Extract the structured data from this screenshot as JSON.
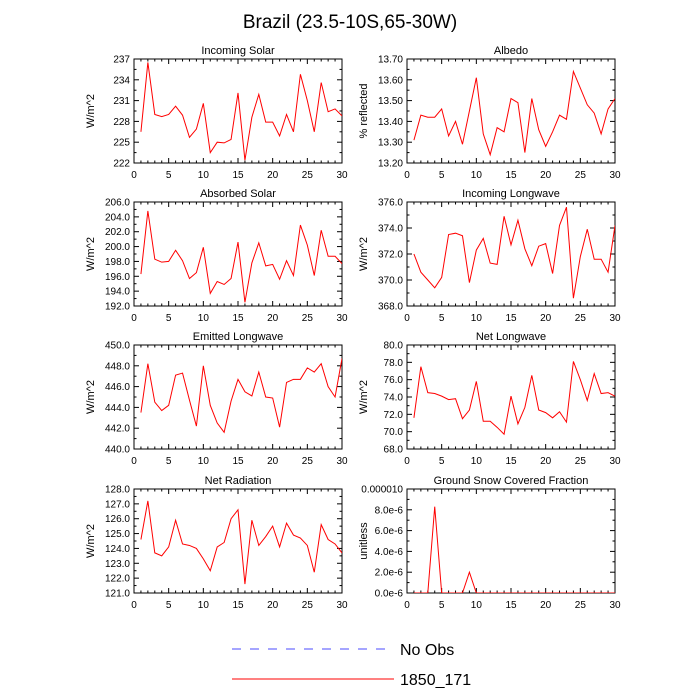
{
  "title": "Brazil (23.5-10S,65-30W)",
  "legend": [
    {
      "label": "No Obs",
      "color": "#4b4bff",
      "style": "dashed"
    },
    {
      "label": "1850_171",
      "color": "#ff0000",
      "style": "solid"
    }
  ],
  "chart_data": [
    {
      "type": "line",
      "title": "Incoming Solar",
      "ylabel": "W/m^2",
      "xlim": [
        0,
        30
      ],
      "ylim": [
        222,
        237
      ],
      "xticks": [
        "0",
        "5",
        "10",
        "15",
        "20",
        "25",
        "30"
      ],
      "yticks": [
        "222",
        "225",
        "228",
        "231",
        "234",
        "237"
      ],
      "series": [
        {
          "name": "1850_171",
          "color": "#ff0000",
          "x": [
            1,
            2,
            3,
            4,
            5,
            6,
            7,
            8,
            9,
            10,
            11,
            12,
            13,
            14,
            15,
            16,
            17,
            18,
            19,
            20,
            21,
            22,
            23,
            24,
            25,
            26,
            27,
            28,
            29,
            30
          ],
          "y": [
            226.5,
            236.5,
            229.0,
            228.7,
            229.0,
            230.2,
            228.9,
            225.7,
            226.9,
            230.6,
            223.5,
            225.0,
            224.9,
            225.4,
            232.1,
            222.4,
            228.6,
            231.9,
            227.9,
            227.9,
            225.9,
            229.0,
            226.5,
            234.8,
            231.0,
            226.5,
            233.6,
            229.4,
            229.8,
            228.8
          ]
        }
      ]
    },
    {
      "type": "line",
      "title": "Albedo",
      "ylabel": "% reflected",
      "xlim": [
        0,
        30
      ],
      "ylim": [
        13.2,
        13.7
      ],
      "xticks": [
        "0",
        "5",
        "10",
        "15",
        "20",
        "25",
        "30"
      ],
      "yticks": [
        "13.20",
        "13.30",
        "13.40",
        "13.50",
        "13.60",
        "13.70"
      ],
      "series": [
        {
          "name": "1850_171",
          "color": "#ff0000",
          "x": [
            1,
            2,
            3,
            4,
            5,
            6,
            7,
            8,
            9,
            10,
            11,
            12,
            13,
            14,
            15,
            16,
            17,
            18,
            19,
            20,
            21,
            22,
            23,
            24,
            25,
            26,
            27,
            28,
            29,
            30
          ],
          "y": [
            13.31,
            13.43,
            13.42,
            13.42,
            13.46,
            13.33,
            13.4,
            13.29,
            13.45,
            13.61,
            13.34,
            13.24,
            13.37,
            13.35,
            13.51,
            13.49,
            13.25,
            13.51,
            13.36,
            13.28,
            13.35,
            13.43,
            13.41,
            13.64,
            13.56,
            13.48,
            13.44,
            13.34,
            13.46,
            13.51
          ]
        }
      ]
    },
    {
      "type": "line",
      "title": "Absorbed Solar",
      "ylabel": "W/m^2",
      "xlim": [
        0,
        30
      ],
      "ylim": [
        192,
        206
      ],
      "xticks": [
        "0",
        "5",
        "10",
        "15",
        "20",
        "25",
        "30"
      ],
      "yticks": [
        "192.0",
        "194.0",
        "196.0",
        "198.0",
        "200.0",
        "202.0",
        "204.0",
        "206.0"
      ],
      "series": [
        {
          "name": "1850_171",
          "color": "#ff0000",
          "x": [
            1,
            2,
            3,
            4,
            5,
            6,
            7,
            8,
            9,
            10,
            11,
            12,
            13,
            14,
            15,
            16,
            17,
            18,
            19,
            20,
            21,
            22,
            23,
            24,
            25,
            26,
            27,
            28,
            29,
            30
          ],
          "y": [
            196.3,
            204.8,
            198.3,
            197.9,
            198.0,
            199.5,
            198.1,
            195.7,
            196.5,
            199.9,
            193.7,
            195.3,
            194.9,
            195.7,
            200.6,
            192.5,
            197.8,
            200.5,
            197.4,
            197.6,
            195.6,
            198.1,
            196.1,
            202.9,
            200.2,
            196.1,
            202.2,
            198.7,
            198.7,
            197.7
          ]
        }
      ]
    },
    {
      "type": "line",
      "title": "Incoming Longwave",
      "ylabel": "W/m^2",
      "xlim": [
        0,
        30
      ],
      "ylim": [
        368,
        376
      ],
      "xticks": [
        "0",
        "5",
        "10",
        "15",
        "20",
        "25",
        "30"
      ],
      "yticks": [
        "368.0",
        "370.0",
        "372.0",
        "374.0",
        "376.0"
      ],
      "series": [
        {
          "name": "1850_171",
          "color": "#ff0000",
          "x": [
            1,
            2,
            3,
            4,
            5,
            6,
            7,
            8,
            9,
            10,
            11,
            12,
            13,
            14,
            15,
            16,
            17,
            18,
            19,
            20,
            21,
            22,
            23,
            24,
            25,
            26,
            27,
            28,
            29,
            30
          ],
          "y": [
            372.0,
            370.6,
            370.0,
            369.4,
            370.2,
            373.5,
            373.6,
            373.4,
            369.8,
            372.3,
            373.2,
            371.3,
            371.2,
            374.9,
            372.7,
            374.6,
            372.4,
            371.1,
            372.6,
            372.8,
            370.5,
            374.2,
            375.6,
            368.6,
            371.8,
            373.9,
            371.6,
            371.6,
            370.6,
            374.2
          ]
        }
      ]
    },
    {
      "type": "line",
      "title": "Emitted Longwave",
      "ylabel": "W/m^2",
      "xlim": [
        0,
        30
      ],
      "ylim": [
        440,
        450
      ],
      "xticks": [
        "0",
        "5",
        "10",
        "15",
        "20",
        "25",
        "30"
      ],
      "yticks": [
        "440.0",
        "442.0",
        "444.0",
        "446.0",
        "448.0",
        "450.0"
      ],
      "series": [
        {
          "name": "1850_171",
          "color": "#ff0000",
          "x": [
            1,
            2,
            3,
            4,
            5,
            6,
            7,
            8,
            9,
            10,
            11,
            12,
            13,
            14,
            15,
            16,
            17,
            18,
            19,
            20,
            21,
            22,
            23,
            24,
            25,
            26,
            27,
            28,
            29,
            30
          ],
          "y": [
            443.5,
            448.2,
            444.5,
            443.7,
            444.2,
            447.1,
            447.3,
            444.7,
            442.2,
            448.0,
            444.2,
            442.5,
            441.6,
            444.6,
            446.7,
            445.5,
            445.1,
            447.4,
            445.0,
            444.9,
            442.1,
            446.4,
            446.7,
            446.7,
            447.8,
            447.4,
            448.2,
            446.0,
            445.0,
            448.7
          ]
        }
      ]
    },
    {
      "type": "line",
      "title": "Net Longwave",
      "ylabel": "W/m^2",
      "xlim": [
        0,
        30
      ],
      "ylim": [
        68,
        80
      ],
      "xticks": [
        "0",
        "5",
        "10",
        "15",
        "20",
        "25",
        "30"
      ],
      "yticks": [
        "68.0",
        "70.0",
        "72.0",
        "74.0",
        "76.0",
        "78.0",
        "80.0"
      ],
      "series": [
        {
          "name": "1850_171",
          "color": "#ff0000",
          "x": [
            1,
            2,
            3,
            4,
            5,
            6,
            7,
            8,
            9,
            10,
            11,
            12,
            13,
            14,
            15,
            16,
            17,
            18,
            19,
            20,
            21,
            22,
            23,
            24,
            25,
            26,
            27,
            28,
            29,
            30
          ],
          "y": [
            71.6,
            77.5,
            74.5,
            74.4,
            74.1,
            73.7,
            73.8,
            71.5,
            72.5,
            75.8,
            71.2,
            71.2,
            70.5,
            69.7,
            74.1,
            70.9,
            72.8,
            76.5,
            72.5,
            72.2,
            71.6,
            72.3,
            71.1,
            78.1,
            76.0,
            73.6,
            76.7,
            74.4,
            74.5,
            74.1
          ]
        }
      ]
    },
    {
      "type": "line",
      "title": "Net Radiation",
      "ylabel": "W/m^2",
      "xlim": [
        0,
        30
      ],
      "ylim": [
        121,
        128
      ],
      "xticks": [
        "0",
        "5",
        "10",
        "15",
        "20",
        "25",
        "30"
      ],
      "yticks": [
        "121.0",
        "122.0",
        "123.0",
        "124.0",
        "125.0",
        "126.0",
        "127.0",
        "128.0"
      ],
      "series": [
        {
          "name": "1850_171",
          "color": "#ff0000",
          "x": [
            1,
            2,
            3,
            4,
            5,
            6,
            7,
            8,
            9,
            10,
            11,
            12,
            13,
            14,
            15,
            16,
            17,
            18,
            19,
            20,
            21,
            22,
            23,
            24,
            25,
            26,
            27,
            28,
            29,
            30
          ],
          "y": [
            124.6,
            127.2,
            123.7,
            123.5,
            124.1,
            125.9,
            124.3,
            124.2,
            124.0,
            123.3,
            122.5,
            124.1,
            124.4,
            126.0,
            126.6,
            121.6,
            125.9,
            124.2,
            124.8,
            125.5,
            124.1,
            125.7,
            124.9,
            124.7,
            124.2,
            122.4,
            125.6,
            124.6,
            124.3,
            123.7
          ]
        }
      ]
    },
    {
      "type": "line",
      "title": "Ground Snow Covered Fraction",
      "ylabel": "unitless",
      "xlim": [
        0,
        30
      ],
      "ylim": [
        0,
        1e-05
      ],
      "xticks": [
        "0",
        "5",
        "10",
        "15",
        "20",
        "25",
        "30"
      ],
      "yticks": [
        "0.0e-6",
        "2.0e-6",
        "4.0e-6",
        "6.0e-6",
        "8.0e-6",
        "0.000010"
      ],
      "series": [
        {
          "name": "1850_171",
          "color": "#ff0000",
          "x": [
            1,
            2,
            3,
            4,
            5,
            6,
            7,
            8,
            9,
            10,
            11,
            12,
            13,
            14,
            15,
            16,
            17,
            18,
            19,
            20,
            21,
            22,
            23,
            24,
            25,
            26,
            27,
            28,
            29,
            30
          ],
          "y": [
            0,
            0,
            0,
            8.3e-06,
            0,
            0,
            0,
            0,
            2e-06,
            0,
            0,
            0,
            0,
            0,
            0,
            0,
            0,
            0,
            0,
            0,
            0,
            0,
            0,
            0,
            0,
            0,
            0,
            0,
            0,
            0
          ]
        }
      ]
    }
  ]
}
